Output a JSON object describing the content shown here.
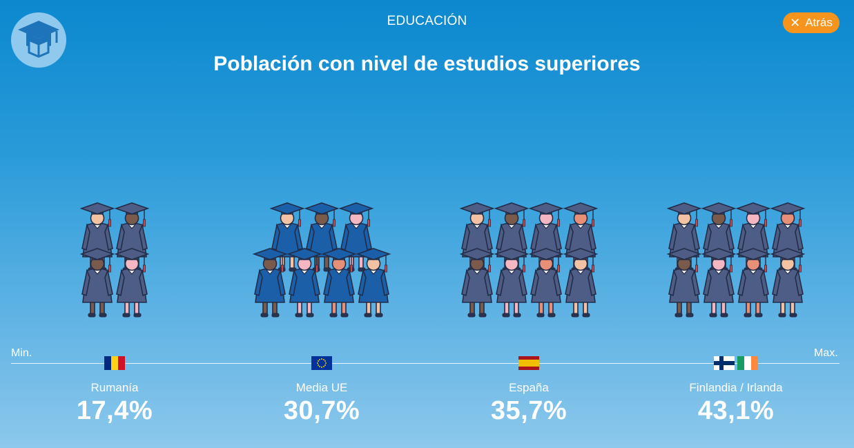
{
  "header": {
    "section": "EDUCACIÓN",
    "back_label": "Atrás",
    "logo_icon": "graduation-cap-book-icon"
  },
  "chart_data": {
    "type": "pictogram",
    "title": "Población con nivel de estudios superiores",
    "axis": {
      "min_label": "Min.",
      "max_label": "Max."
    },
    "categories": [
      "Rumanía",
      "Media UE",
      "España",
      "Finlandia / Irlanda"
    ],
    "values": [
      17.4,
      30.7,
      35.7,
      43.1
    ],
    "value_labels": [
      "17,4%",
      "30,7%",
      "35,7%",
      "43,1%"
    ],
    "unit": "%",
    "icon": "graduate-figure-icon",
    "figure_counts": [
      4,
      7,
      8,
      8
    ],
    "figure_colors": [
      "#4e5d86",
      "#1a5fa8",
      "#4e5d86",
      "#4e5d86"
    ],
    "flags": [
      [
        "#002b7f",
        "#fcd116",
        "#ce1126"
      ],
      [
        "#003399"
      ],
      [
        "#aa151b",
        "#f1bf00",
        "#aa151b"
      ],
      [
        "#ffffff",
        "#002f6c"
      ],
      [
        "#169b62",
        "#ffffff",
        "#ff883e"
      ]
    ],
    "flag_icons": [
      "romania-flag-icon",
      "eu-flag-icon",
      "spain-flag-icon",
      "finland-flag-icon",
      "ireland-flag-icon"
    ]
  }
}
